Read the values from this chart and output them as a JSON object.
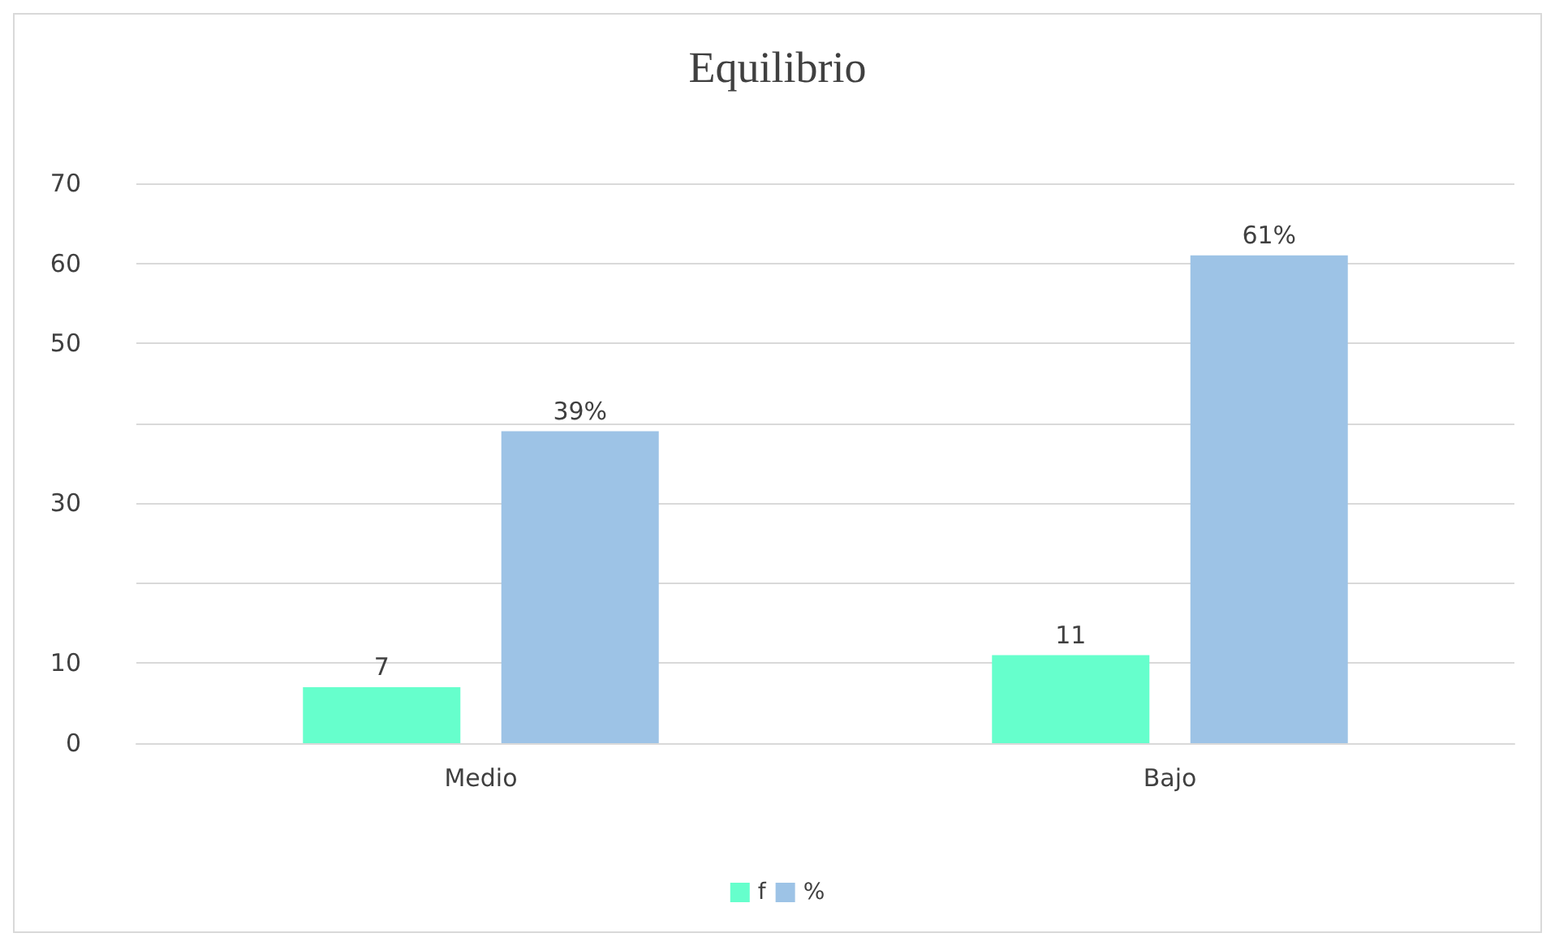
{
  "chart_data": {
    "type": "bar",
    "title": "Equilibrio",
    "categories": [
      "Medio",
      "Bajo"
    ],
    "series": [
      {
        "name": "f",
        "color": "#66ffcc",
        "values": [
          7,
          11
        ],
        "value_labels": [
          "7",
          "11"
        ]
      },
      {
        "name": "%",
        "color": "#9dc3e6",
        "values": [
          39,
          61
        ],
        "value_labels": [
          "39%",
          "61%"
        ]
      }
    ],
    "ylim": [
      0,
      70
    ],
    "yticks": [
      0,
      10,
      {
        "value": 20,
        "label": null
      },
      30,
      {
        "value": 40,
        "label": null
      },
      50,
      60,
      70
    ],
    "grid": "y",
    "legend": "bottom"
  }
}
